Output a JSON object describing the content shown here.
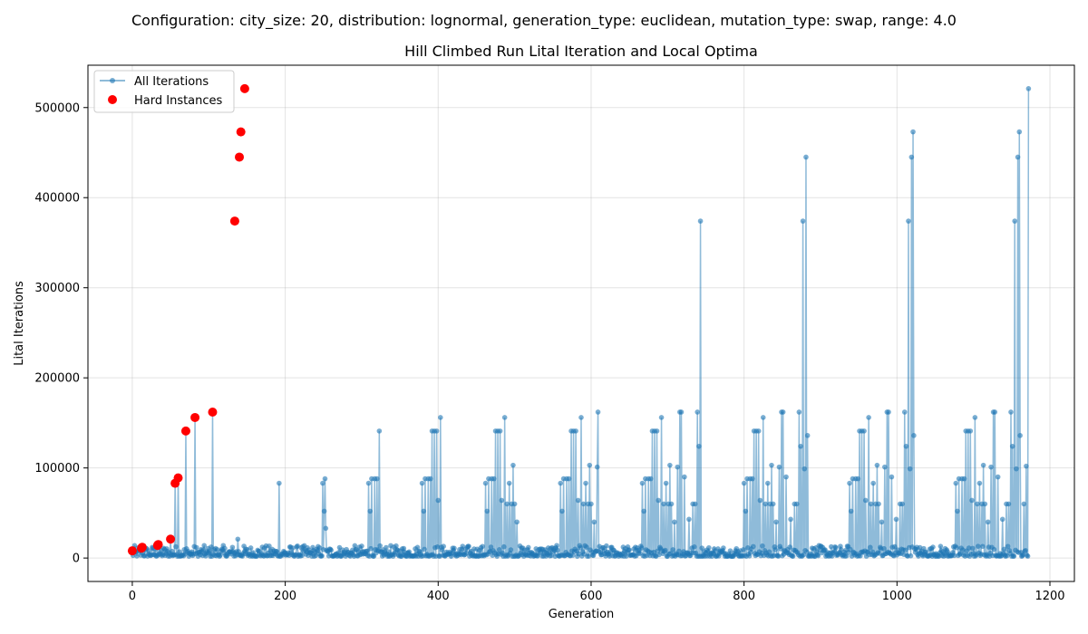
{
  "chart_data": {
    "type": "scatter",
    "suptitle": "Configuration: city_size: 20, distribution: lognormal, generation_type: euclidean, mutation_type: swap, range: 4.0",
    "title": "Hill Climbed Run Lital Iteration and Local Optima",
    "xlabel": "Generation",
    "ylabel": "Lital Iterations",
    "xlim": [
      -58,
      1232
    ],
    "ylim": [
      -26000,
      547000
    ],
    "xticks": [
      0,
      200,
      400,
      600,
      800,
      1000,
      1200
    ],
    "yticks": [
      0,
      100000,
      200000,
      300000,
      400000,
      500000
    ],
    "grid": true,
    "legend_position": "top-left",
    "colors": {
      "all_iterations": "#1f77b4",
      "hard_instances": "#ff0000"
    },
    "series": [
      {
        "name": "All Iterations",
        "style": "line-marker",
        "baseline_noise": [
          2000,
          14000
        ],
        "x_max": 1172,
        "peaks": [
          [
            13,
            12000
          ],
          [
            33,
            14000
          ],
          [
            50,
            21000
          ],
          [
            56,
            83000
          ],
          [
            60,
            89000
          ],
          [
            70,
            141000
          ],
          [
            82,
            156000
          ],
          [
            105,
            162000
          ],
          [
            138,
            21000
          ],
          [
            192,
            83000
          ],
          [
            249,
            83000
          ],
          [
            251,
            52000
          ],
          [
            252,
            88000
          ],
          [
            253,
            33000
          ],
          [
            309,
            83000
          ],
          [
            311,
            52000
          ],
          [
            313,
            88000
          ],
          [
            317,
            88000
          ],
          [
            320,
            88000
          ],
          [
            323,
            141000
          ],
          [
            379,
            83000
          ],
          [
            381,
            52000
          ],
          [
            383,
            88000
          ],
          [
            387,
            88000
          ],
          [
            390,
            88000
          ],
          [
            392,
            141000
          ],
          [
            395,
            141000
          ],
          [
            398,
            141000
          ],
          [
            400,
            64000
          ],
          [
            403,
            156000
          ],
          [
            462,
            83000
          ],
          [
            464,
            52000
          ],
          [
            466,
            88000
          ],
          [
            470,
            88000
          ],
          [
            473,
            88000
          ],
          [
            475,
            141000
          ],
          [
            478,
            141000
          ],
          [
            481,
            141000
          ],
          [
            483,
            64000
          ],
          [
            487,
            156000
          ],
          [
            490,
            60000
          ],
          [
            493,
            83000
          ],
          [
            496,
            60000
          ],
          [
            498,
            103000
          ],
          [
            500,
            60000
          ],
          [
            503,
            40000
          ],
          [
            560,
            83000
          ],
          [
            562,
            52000
          ],
          [
            564,
            88000
          ],
          [
            568,
            88000
          ],
          [
            571,
            88000
          ],
          [
            574,
            141000
          ],
          [
            577,
            141000
          ],
          [
            580,
            141000
          ],
          [
            583,
            64000
          ],
          [
            587,
            156000
          ],
          [
            590,
            60000
          ],
          [
            593,
            83000
          ],
          [
            596,
            60000
          ],
          [
            598,
            103000
          ],
          [
            600,
            60000
          ],
          [
            604,
            40000
          ],
          [
            608,
            101000
          ],
          [
            609,
            162000
          ],
          [
            667,
            83000
          ],
          [
            669,
            52000
          ],
          [
            671,
            88000
          ],
          [
            675,
            88000
          ],
          [
            678,
            88000
          ],
          [
            680,
            141000
          ],
          [
            683,
            141000
          ],
          [
            686,
            141000
          ],
          [
            688,
            64000
          ],
          [
            692,
            156000
          ],
          [
            695,
            60000
          ],
          [
            698,
            83000
          ],
          [
            701,
            60000
          ],
          [
            703,
            103000
          ],
          [
            705,
            60000
          ],
          [
            709,
            40000
          ],
          [
            713,
            101000
          ],
          [
            716,
            162000
          ],
          [
            718,
            162000
          ],
          [
            722,
            90000
          ],
          [
            728,
            43000
          ],
          [
            733,
            60000
          ],
          [
            736,
            60000
          ],
          [
            739,
            162000
          ],
          [
            741,
            124000
          ],
          [
            743,
            374000
          ],
          [
            800,
            83000
          ],
          [
            802,
            52000
          ],
          [
            804,
            88000
          ],
          [
            808,
            88000
          ],
          [
            811,
            88000
          ],
          [
            813,
            141000
          ],
          [
            816,
            141000
          ],
          [
            819,
            141000
          ],
          [
            821,
            64000
          ],
          [
            825,
            156000
          ],
          [
            828,
            60000
          ],
          [
            831,
            83000
          ],
          [
            834,
            60000
          ],
          [
            836,
            103000
          ],
          [
            838,
            60000
          ],
          [
            842,
            40000
          ],
          [
            846,
            101000
          ],
          [
            849,
            162000
          ],
          [
            851,
            162000
          ],
          [
            855,
            90000
          ],
          [
            861,
            43000
          ],
          [
            866,
            60000
          ],
          [
            869,
            60000
          ],
          [
            872,
            162000
          ],
          [
            874,
            124000
          ],
          [
            877,
            374000
          ],
          [
            879,
            99000
          ],
          [
            881,
            445000
          ],
          [
            883,
            136000
          ],
          [
            938,
            83000
          ],
          [
            940,
            52000
          ],
          [
            942,
            88000
          ],
          [
            946,
            88000
          ],
          [
            949,
            88000
          ],
          [
            951,
            141000
          ],
          [
            954,
            141000
          ],
          [
            957,
            141000
          ],
          [
            959,
            64000
          ],
          [
            963,
            156000
          ],
          [
            966,
            60000
          ],
          [
            969,
            83000
          ],
          [
            972,
            60000
          ],
          [
            974,
            103000
          ],
          [
            976,
            60000
          ],
          [
            980,
            40000
          ],
          [
            984,
            101000
          ],
          [
            987,
            162000
          ],
          [
            989,
            162000
          ],
          [
            993,
            90000
          ],
          [
            999,
            43000
          ],
          [
            1004,
            60000
          ],
          [
            1007,
            60000
          ],
          [
            1010,
            162000
          ],
          [
            1012,
            124000
          ],
          [
            1015,
            374000
          ],
          [
            1017,
            99000
          ],
          [
            1019,
            445000
          ],
          [
            1021,
            473000
          ],
          [
            1022,
            136000
          ],
          [
            1077,
            83000
          ],
          [
            1079,
            52000
          ],
          [
            1081,
            88000
          ],
          [
            1085,
            88000
          ],
          [
            1088,
            88000
          ],
          [
            1090,
            141000
          ],
          [
            1093,
            141000
          ],
          [
            1096,
            141000
          ],
          [
            1098,
            64000
          ],
          [
            1102,
            156000
          ],
          [
            1105,
            60000
          ],
          [
            1108,
            83000
          ],
          [
            1111,
            60000
          ],
          [
            1113,
            103000
          ],
          [
            1115,
            60000
          ],
          [
            1119,
            40000
          ],
          [
            1123,
            101000
          ],
          [
            1126,
            162000
          ],
          [
            1128,
            162000
          ],
          [
            1132,
            90000
          ],
          [
            1138,
            43000
          ],
          [
            1143,
            60000
          ],
          [
            1146,
            60000
          ],
          [
            1149,
            162000
          ],
          [
            1151,
            124000
          ],
          [
            1154,
            374000
          ],
          [
            1156,
            99000
          ],
          [
            1158,
            445000
          ],
          [
            1160,
            473000
          ],
          [
            1161,
            136000
          ],
          [
            1166,
            60000
          ],
          [
            1169,
            102000
          ],
          [
            1172,
            521000
          ]
        ]
      },
      {
        "name": "Hard Instances",
        "style": "marker",
        "x": [
          0,
          12,
          13,
          33,
          34,
          50,
          56,
          60,
          70,
          82,
          105,
          134,
          140,
          142,
          147
        ],
        "y": [
          8000,
          11000,
          12000,
          14000,
          15000,
          21000,
          83000,
          89000,
          141000,
          156000,
          162000,
          374000,
          445000,
          473000,
          521000
        ]
      }
    ]
  }
}
